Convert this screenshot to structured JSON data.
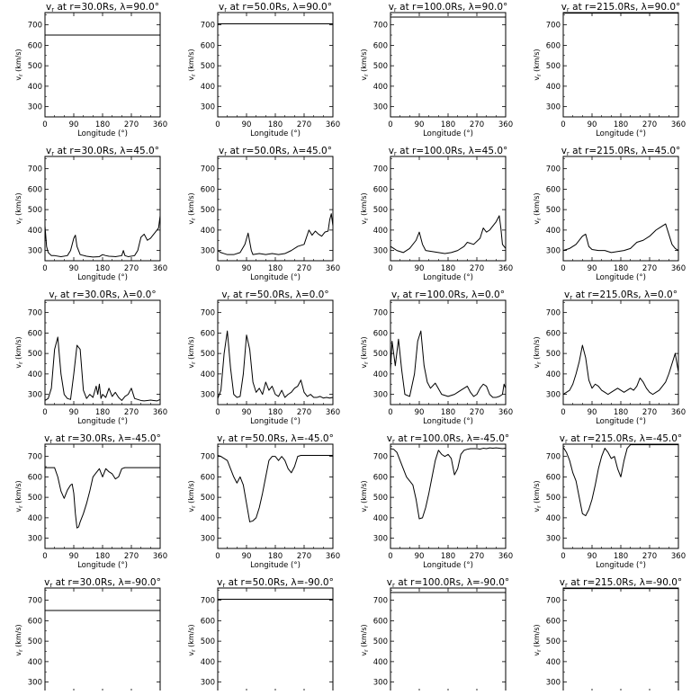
{
  "chart_data": {
    "type": "line",
    "title_template": "v_r at r={r}Rs, λ={lat}°",
    "radii_labels": [
      "30.0",
      "50.0",
      "100.0",
      "215.0"
    ],
    "latitude_labels": [
      "90.0",
      "45.0",
      "0.0",
      "-45.0",
      "-90.0"
    ],
    "xlabel": "Longitude (°)",
    "ylabel": "v_r (km/s)",
    "xlim": [
      0,
      360
    ],
    "ylim": [
      250,
      760
    ],
    "xticks": [
      0,
      90,
      180,
      270,
      360
    ],
    "yticks": [
      300,
      400,
      500,
      600,
      700
    ],
    "panels": [
      {
        "r": "30.0",
        "lat": "90.0",
        "x": [
          0,
          360
        ],
        "y": [
          650,
          650
        ]
      },
      {
        "r": "50.0",
        "lat": "90.0",
        "x": [
          0,
          360
        ],
        "y": [
          705,
          705
        ]
      },
      {
        "r": "100.0",
        "lat": "90.0",
        "x": [
          0,
          360
        ],
        "y": [
          738,
          738
        ]
      },
      {
        "r": "215.0",
        "lat": "90.0",
        "x": [
          0,
          360
        ],
        "y": [
          757,
          757
        ]
      },
      {
        "r": "30.0",
        "lat": "45.0",
        "x": [
          0,
          5,
          10,
          20,
          30,
          50,
          70,
          80,
          90,
          95,
          100,
          110,
          130,
          150,
          170,
          180,
          190,
          200,
          220,
          240,
          245,
          250,
          260,
          280,
          290,
          300,
          310,
          320,
          330,
          340,
          350,
          355,
          360
        ],
        "y": [
          420,
          320,
          290,
          275,
          275,
          270,
          275,
          300,
          360,
          375,
          320,
          280,
          272,
          268,
          270,
          280,
          275,
          272,
          270,
          275,
          300,
          275,
          270,
          275,
          300,
          365,
          380,
          350,
          360,
          380,
          400,
          410,
          470
        ]
      },
      {
        "r": "50.0",
        "lat": "45.0",
        "x": [
          0,
          10,
          20,
          30,
          50,
          70,
          85,
          95,
          105,
          110,
          130,
          150,
          170,
          190,
          210,
          230,
          250,
          270,
          285,
          295,
          305,
          315,
          325,
          335,
          345,
          350,
          355,
          360
        ],
        "y": [
          300,
          290,
          285,
          280,
          280,
          290,
          330,
          385,
          300,
          280,
          285,
          280,
          285,
          280,
          285,
          300,
          320,
          330,
          400,
          375,
          395,
          380,
          370,
          390,
          395,
          450,
          480,
          420
        ]
      },
      {
        "r": "100.0",
        "lat": "45.0",
        "x": [
          0,
          10,
          20,
          40,
          60,
          80,
          90,
          100,
          110,
          130,
          150,
          170,
          190,
          210,
          230,
          240,
          260,
          280,
          290,
          300,
          310,
          320,
          330,
          340,
          345,
          350,
          360
        ],
        "y": [
          320,
          310,
          300,
          290,
          310,
          350,
          390,
          330,
          300,
          295,
          290,
          285,
          290,
          300,
          320,
          340,
          330,
          360,
          410,
          390,
          400,
          420,
          440,
          470,
          410,
          330,
          310
        ]
      },
      {
        "r": "215.0",
        "lat": "45.0",
        "x": [
          0,
          20,
          40,
          60,
          70,
          80,
          90,
          110,
          130,
          150,
          170,
          190,
          210,
          230,
          250,
          270,
          290,
          310,
          320,
          330,
          340,
          350,
          360
        ],
        "y": [
          300,
          310,
          330,
          370,
          380,
          320,
          305,
          300,
          300,
          290,
          295,
          300,
          310,
          340,
          350,
          370,
          400,
          420,
          430,
          380,
          330,
          310,
          300
        ]
      },
      {
        "r": "30.0",
        "lat": "0.0",
        "x": [
          0,
          10,
          20,
          30,
          40,
          50,
          60,
          70,
          80,
          90,
          100,
          110,
          120,
          130,
          140,
          150,
          160,
          165,
          170,
          175,
          180,
          190,
          200,
          210,
          220,
          230,
          240,
          250,
          260,
          270,
          280,
          290,
          300,
          310,
          320,
          330,
          340,
          350,
          360
        ],
        "y": [
          270,
          280,
          330,
          520,
          580,
          400,
          300,
          280,
          275,
          400,
          540,
          520,
          320,
          280,
          300,
          285,
          340,
          300,
          350,
          280,
          300,
          285,
          330,
          290,
          310,
          285,
          270,
          290,
          300,
          330,
          280,
          275,
          270,
          268,
          270,
          272,
          270,
          268,
          275
        ]
      },
      {
        "r": "50.0",
        "lat": "0.0",
        "x": [
          0,
          10,
          20,
          30,
          40,
          50,
          60,
          70,
          80,
          90,
          100,
          110,
          120,
          130,
          140,
          150,
          160,
          170,
          180,
          190,
          200,
          210,
          220,
          230,
          240,
          250,
          260,
          270,
          280,
          290,
          300,
          310,
          320,
          330,
          340,
          350,
          360
        ],
        "y": [
          280,
          320,
          500,
          610,
          430,
          300,
          285,
          290,
          400,
          590,
          520,
          360,
          310,
          330,
          300,
          360,
          320,
          340,
          300,
          290,
          320,
          285,
          300,
          310,
          330,
          340,
          370,
          310,
          290,
          300,
          285,
          285,
          290,
          282,
          285,
          282,
          285
        ]
      },
      {
        "r": "100.0",
        "lat": "0.0",
        "x": [
          0,
          5,
          15,
          25,
          35,
          45,
          60,
          75,
          85,
          95,
          105,
          115,
          125,
          140,
          160,
          180,
          200,
          220,
          240,
          250,
          260,
          270,
          280,
          290,
          300,
          310,
          320,
          330,
          340,
          350,
          355,
          360
        ],
        "y": [
          420,
          560,
          440,
          570,
          420,
          300,
          290,
          400,
          560,
          610,
          440,
          360,
          330,
          355,
          300,
          290,
          300,
          320,
          340,
          310,
          290,
          300,
          330,
          350,
          340,
          300,
          285,
          285,
          290,
          300,
          350,
          330
        ]
      },
      {
        "r": "215.0",
        "lat": "0.0",
        "x": [
          0,
          10,
          20,
          30,
          40,
          50,
          60,
          70,
          80,
          90,
          100,
          110,
          120,
          130,
          140,
          150,
          160,
          170,
          180,
          190,
          200,
          210,
          220,
          230,
          240,
          250,
          260,
          270,
          280,
          290,
          300,
          310,
          320,
          330,
          340,
          350,
          360
        ],
        "y": [
          300,
          310,
          320,
          350,
          400,
          460,
          540,
          480,
          370,
          330,
          350,
          340,
          320,
          310,
          300,
          310,
          320,
          330,
          320,
          310,
          320,
          330,
          320,
          340,
          380,
          360,
          330,
          310,
          300,
          310,
          320,
          340,
          360,
          400,
          450,
          500,
          410
        ]
      },
      {
        "r": "30.0",
        "lat": "-45.0",
        "x": [
          0,
          30,
          40,
          50,
          60,
          70,
          80,
          85,
          90,
          95,
          100,
          105,
          110,
          120,
          130,
          140,
          150,
          160,
          170,
          180,
          190,
          200,
          210,
          220,
          230,
          240,
          250,
          260,
          270,
          280,
          290,
          300,
          310,
          320,
          330,
          340,
          350,
          360
        ],
        "y": [
          645,
          645,
          600,
          530,
          495,
          535,
          560,
          565,
          520,
          420,
          350,
          355,
          380,
          420,
          470,
          530,
          600,
          620,
          640,
          600,
          640,
          625,
          615,
          590,
          600,
          640,
          645,
          645,
          645,
          645,
          645,
          645,
          645,
          645,
          645,
          645,
          645,
          645
        ]
      },
      {
        "r": "50.0",
        "lat": "-45.0",
        "x": [
          0,
          10,
          20,
          30,
          40,
          50,
          60,
          70,
          80,
          90,
          100,
          110,
          120,
          130,
          140,
          150,
          160,
          170,
          180,
          190,
          200,
          210,
          220,
          230,
          240,
          250,
          260,
          270,
          280,
          290,
          300,
          310,
          320,
          330,
          340,
          350,
          360
        ],
        "y": [
          705,
          700,
          690,
          680,
          640,
          600,
          570,
          600,
          560,
          470,
          380,
          385,
          400,
          450,
          520,
          600,
          680,
          700,
          700,
          680,
          700,
          680,
          640,
          620,
          650,
          700,
          705,
          705,
          705,
          705,
          705,
          705,
          705,
          705,
          705,
          705,
          705
        ]
      },
      {
        "r": "100.0",
        "lat": "-45.0",
        "x": [
          0,
          10,
          20,
          30,
          40,
          50,
          60,
          70,
          80,
          90,
          100,
          110,
          120,
          130,
          140,
          150,
          160,
          170,
          180,
          190,
          200,
          210,
          220,
          230,
          240,
          250,
          260,
          270,
          280,
          290,
          300,
          310,
          320,
          330,
          340,
          350,
          360
        ],
        "y": [
          738,
          735,
          720,
          680,
          640,
          600,
          580,
          560,
          490,
          395,
          400,
          450,
          520,
          600,
          680,
          730,
          710,
          700,
          710,
          690,
          610,
          640,
          710,
          730,
          735,
          738,
          738,
          738,
          736,
          740,
          738,
          742,
          740,
          742,
          740,
          738,
          740
        ]
      },
      {
        "r": "215.0",
        "lat": "-45.0",
        "x": [
          0,
          10,
          20,
          30,
          40,
          50,
          60,
          70,
          80,
          90,
          100,
          110,
          120,
          130,
          140,
          150,
          160,
          170,
          180,
          190,
          200,
          210,
          220,
          230,
          240,
          250,
          260,
          270,
          280,
          290,
          300,
          310,
          320,
          330,
          340,
          350,
          360
        ],
        "y": [
          745,
          720,
          680,
          620,
          580,
          500,
          420,
          410,
          440,
          490,
          560,
          640,
          700,
          740,
          720,
          690,
          700,
          640,
          600,
          680,
          740,
          757,
          757,
          757,
          757,
          757,
          757,
          757,
          757,
          757,
          757,
          757,
          757,
          757,
          757,
          757,
          757
        ]
      },
      {
        "r": "30.0",
        "lat": "-90.0",
        "x": [
          0,
          360
        ],
        "y": [
          650,
          650
        ]
      },
      {
        "r": "50.0",
        "lat": "-90.0",
        "x": [
          0,
          360
        ],
        "y": [
          705,
          705
        ]
      },
      {
        "r": "100.0",
        "lat": "-90.0",
        "x": [
          0,
          360
        ],
        "y": [
          738,
          738
        ]
      },
      {
        "r": "215.0",
        "lat": "-90.0",
        "x": [
          0,
          360
        ],
        "y": [
          757,
          757
        ]
      }
    ]
  }
}
